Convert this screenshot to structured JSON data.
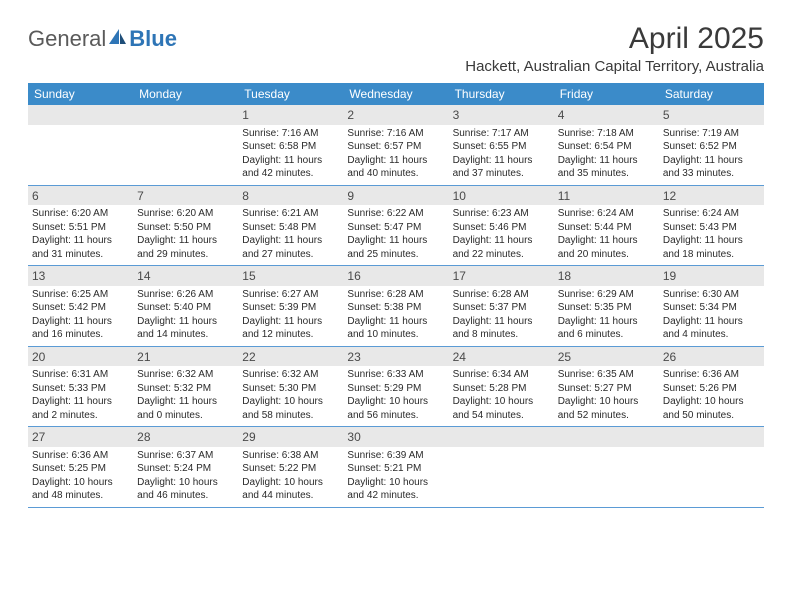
{
  "logo": {
    "part1": "General",
    "part2": "Blue"
  },
  "title": "April 2025",
  "location": "Hackett, Australian Capital Territory, Australia",
  "colors": {
    "header_bg": "#3b8bc9",
    "header_text": "#ffffff",
    "daynum_bg": "#e8e8e8",
    "week_border": "#5b9bd5",
    "body_bg": "#ffffff"
  },
  "day_names": [
    "Sunday",
    "Monday",
    "Tuesday",
    "Wednesday",
    "Thursday",
    "Friday",
    "Saturday"
  ],
  "weeks": [
    [
      {
        "n": "",
        "sunrise": "",
        "sunset": "",
        "daylight": ""
      },
      {
        "n": "",
        "sunrise": "",
        "sunset": "",
        "daylight": ""
      },
      {
        "n": "1",
        "sunrise": "Sunrise: 7:16 AM",
        "sunset": "Sunset: 6:58 PM",
        "daylight": "Daylight: 11 hours and 42 minutes."
      },
      {
        "n": "2",
        "sunrise": "Sunrise: 7:16 AM",
        "sunset": "Sunset: 6:57 PM",
        "daylight": "Daylight: 11 hours and 40 minutes."
      },
      {
        "n": "3",
        "sunrise": "Sunrise: 7:17 AM",
        "sunset": "Sunset: 6:55 PM",
        "daylight": "Daylight: 11 hours and 37 minutes."
      },
      {
        "n": "4",
        "sunrise": "Sunrise: 7:18 AM",
        "sunset": "Sunset: 6:54 PM",
        "daylight": "Daylight: 11 hours and 35 minutes."
      },
      {
        "n": "5",
        "sunrise": "Sunrise: 7:19 AM",
        "sunset": "Sunset: 6:52 PM",
        "daylight": "Daylight: 11 hours and 33 minutes."
      }
    ],
    [
      {
        "n": "6",
        "sunrise": "Sunrise: 6:20 AM",
        "sunset": "Sunset: 5:51 PM",
        "daylight": "Daylight: 11 hours and 31 minutes."
      },
      {
        "n": "7",
        "sunrise": "Sunrise: 6:20 AM",
        "sunset": "Sunset: 5:50 PM",
        "daylight": "Daylight: 11 hours and 29 minutes."
      },
      {
        "n": "8",
        "sunrise": "Sunrise: 6:21 AM",
        "sunset": "Sunset: 5:48 PM",
        "daylight": "Daylight: 11 hours and 27 minutes."
      },
      {
        "n": "9",
        "sunrise": "Sunrise: 6:22 AM",
        "sunset": "Sunset: 5:47 PM",
        "daylight": "Daylight: 11 hours and 25 minutes."
      },
      {
        "n": "10",
        "sunrise": "Sunrise: 6:23 AM",
        "sunset": "Sunset: 5:46 PM",
        "daylight": "Daylight: 11 hours and 22 minutes."
      },
      {
        "n": "11",
        "sunrise": "Sunrise: 6:24 AM",
        "sunset": "Sunset: 5:44 PM",
        "daylight": "Daylight: 11 hours and 20 minutes."
      },
      {
        "n": "12",
        "sunrise": "Sunrise: 6:24 AM",
        "sunset": "Sunset: 5:43 PM",
        "daylight": "Daylight: 11 hours and 18 minutes."
      }
    ],
    [
      {
        "n": "13",
        "sunrise": "Sunrise: 6:25 AM",
        "sunset": "Sunset: 5:42 PM",
        "daylight": "Daylight: 11 hours and 16 minutes."
      },
      {
        "n": "14",
        "sunrise": "Sunrise: 6:26 AM",
        "sunset": "Sunset: 5:40 PM",
        "daylight": "Daylight: 11 hours and 14 minutes."
      },
      {
        "n": "15",
        "sunrise": "Sunrise: 6:27 AM",
        "sunset": "Sunset: 5:39 PM",
        "daylight": "Daylight: 11 hours and 12 minutes."
      },
      {
        "n": "16",
        "sunrise": "Sunrise: 6:28 AM",
        "sunset": "Sunset: 5:38 PM",
        "daylight": "Daylight: 11 hours and 10 minutes."
      },
      {
        "n": "17",
        "sunrise": "Sunrise: 6:28 AM",
        "sunset": "Sunset: 5:37 PM",
        "daylight": "Daylight: 11 hours and 8 minutes."
      },
      {
        "n": "18",
        "sunrise": "Sunrise: 6:29 AM",
        "sunset": "Sunset: 5:35 PM",
        "daylight": "Daylight: 11 hours and 6 minutes."
      },
      {
        "n": "19",
        "sunrise": "Sunrise: 6:30 AM",
        "sunset": "Sunset: 5:34 PM",
        "daylight": "Daylight: 11 hours and 4 minutes."
      }
    ],
    [
      {
        "n": "20",
        "sunrise": "Sunrise: 6:31 AM",
        "sunset": "Sunset: 5:33 PM",
        "daylight": "Daylight: 11 hours and 2 minutes."
      },
      {
        "n": "21",
        "sunrise": "Sunrise: 6:32 AM",
        "sunset": "Sunset: 5:32 PM",
        "daylight": "Daylight: 11 hours and 0 minutes."
      },
      {
        "n": "22",
        "sunrise": "Sunrise: 6:32 AM",
        "sunset": "Sunset: 5:30 PM",
        "daylight": "Daylight: 10 hours and 58 minutes."
      },
      {
        "n": "23",
        "sunrise": "Sunrise: 6:33 AM",
        "sunset": "Sunset: 5:29 PM",
        "daylight": "Daylight: 10 hours and 56 minutes."
      },
      {
        "n": "24",
        "sunrise": "Sunrise: 6:34 AM",
        "sunset": "Sunset: 5:28 PM",
        "daylight": "Daylight: 10 hours and 54 minutes."
      },
      {
        "n": "25",
        "sunrise": "Sunrise: 6:35 AM",
        "sunset": "Sunset: 5:27 PM",
        "daylight": "Daylight: 10 hours and 52 minutes."
      },
      {
        "n": "26",
        "sunrise": "Sunrise: 6:36 AM",
        "sunset": "Sunset: 5:26 PM",
        "daylight": "Daylight: 10 hours and 50 minutes."
      }
    ],
    [
      {
        "n": "27",
        "sunrise": "Sunrise: 6:36 AM",
        "sunset": "Sunset: 5:25 PM",
        "daylight": "Daylight: 10 hours and 48 minutes."
      },
      {
        "n": "28",
        "sunrise": "Sunrise: 6:37 AM",
        "sunset": "Sunset: 5:24 PM",
        "daylight": "Daylight: 10 hours and 46 minutes."
      },
      {
        "n": "29",
        "sunrise": "Sunrise: 6:38 AM",
        "sunset": "Sunset: 5:22 PM",
        "daylight": "Daylight: 10 hours and 44 minutes."
      },
      {
        "n": "30",
        "sunrise": "Sunrise: 6:39 AM",
        "sunset": "Sunset: 5:21 PM",
        "daylight": "Daylight: 10 hours and 42 minutes."
      },
      {
        "n": "",
        "sunrise": "",
        "sunset": "",
        "daylight": ""
      },
      {
        "n": "",
        "sunrise": "",
        "sunset": "",
        "daylight": ""
      },
      {
        "n": "",
        "sunrise": "",
        "sunset": "",
        "daylight": ""
      }
    ]
  ]
}
